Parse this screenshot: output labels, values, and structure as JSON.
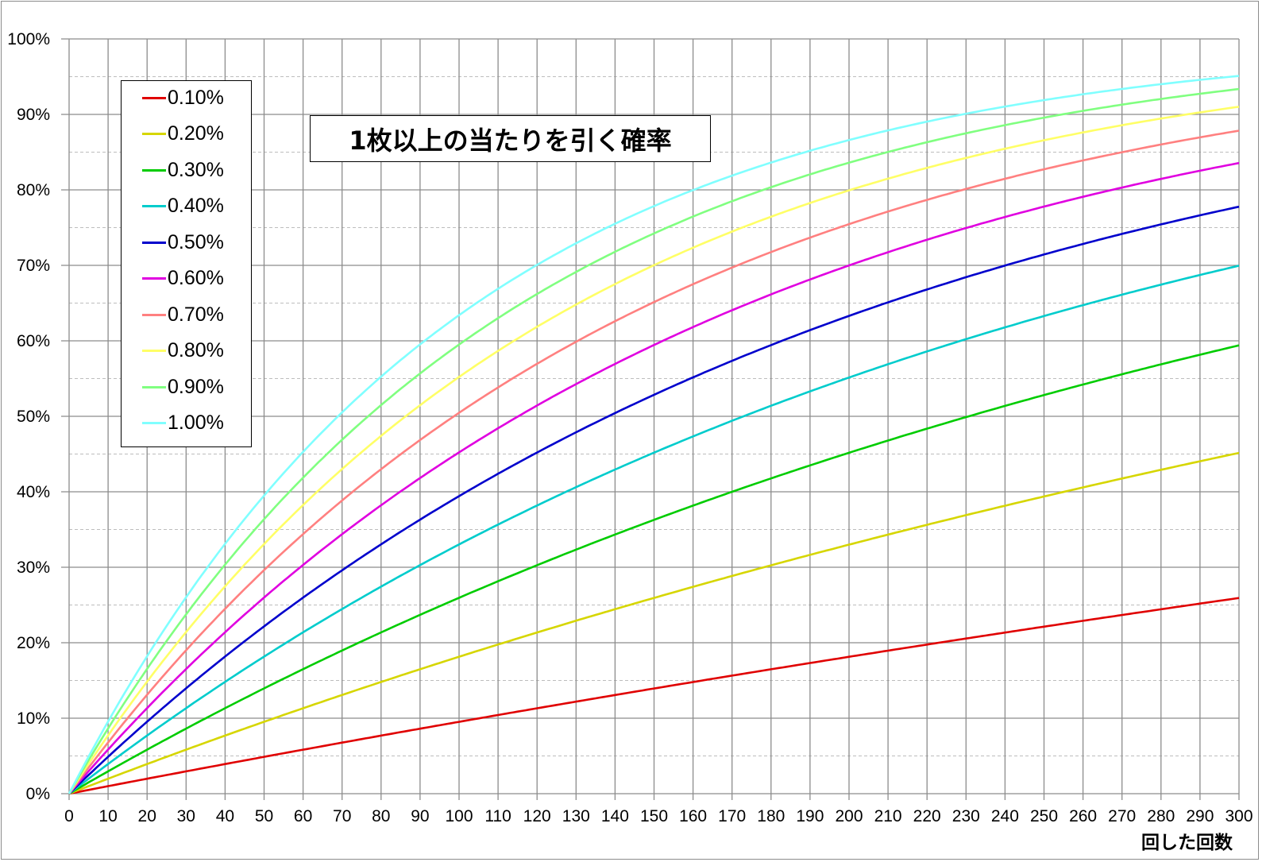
{
  "chart_data": {
    "type": "line",
    "title": "1枚以上の当たりを引く確率",
    "xlabel": "回した回数",
    "ylabel": "",
    "xlim": [
      0,
      300
    ],
    "ylim": [
      0,
      100
    ],
    "x_ticks": [
      "0",
      "10",
      "20",
      "30",
      "40",
      "50",
      "60",
      "70",
      "80",
      "90",
      "100",
      "110",
      "120",
      "130",
      "140",
      "150",
      "160",
      "170",
      "180",
      "190",
      "200",
      "210",
      "220",
      "230",
      "240",
      "250",
      "260",
      "270",
      "280",
      "290",
      "300"
    ],
    "y_ticks": [
      "0%",
      "10%",
      "20%",
      "30%",
      "40%",
      "50%",
      "60%",
      "70%",
      "80%",
      "90%",
      "100%"
    ],
    "grid": true,
    "legend_position": "top-left",
    "model": "1-(1-p)^n",
    "sample_x": [
      0,
      50,
      100,
      150,
      200,
      250,
      300
    ],
    "series": [
      {
        "name": "0.10%",
        "p": 0.001,
        "color": "#e00000",
        "values": [
          0,
          4.9,
          9.5,
          13.9,
          18.1,
          22.1,
          25.9
        ]
      },
      {
        "name": "0.20%",
        "p": 0.002,
        "color": "#d6d600",
        "values": [
          0,
          9.5,
          18.1,
          25.9,
          33.0,
          39.4,
          45.1
        ]
      },
      {
        "name": "0.30%",
        "p": 0.003,
        "color": "#00cc00",
        "values": [
          0,
          13.9,
          26.0,
          36.3,
          45.2,
          52.8,
          59.4
        ]
      },
      {
        "name": "0.40%",
        "p": 0.004,
        "color": "#00cccc",
        "values": [
          0,
          18.2,
          33.0,
          45.2,
          55.1,
          63.3,
          70.0
        ]
      },
      {
        "name": "0.50%",
        "p": 0.005,
        "color": "#0000cc",
        "values": [
          0,
          22.2,
          39.4,
          52.9,
          63.3,
          71.4,
          77.8
        ]
      },
      {
        "name": "0.60%",
        "p": 0.006,
        "color": "#e000e0",
        "values": [
          0,
          26.0,
          45.2,
          59.4,
          70.0,
          77.8,
          83.6
        ]
      },
      {
        "name": "0.70%",
        "p": 0.007,
        "color": "#ff8080",
        "values": [
          0,
          29.6,
          50.5,
          65.1,
          75.5,
          82.7,
          87.8
        ]
      },
      {
        "name": "0.80%",
        "p": 0.008,
        "color": "#ffff66",
        "values": [
          0,
          33.1,
          55.2,
          70.0,
          79.9,
          86.6,
          91.0
        ]
      },
      {
        "name": "0.90%",
        "p": 0.009,
        "color": "#80ff80",
        "values": [
          0,
          36.4,
          59.5,
          74.2,
          83.6,
          89.6,
          93.4
        ]
      },
      {
        "name": "1.00%",
        "p": 0.01,
        "color": "#80ffff",
        "values": [
          0,
          39.5,
          63.4,
          77.9,
          86.6,
          91.9,
          95.1
        ]
      }
    ]
  }
}
